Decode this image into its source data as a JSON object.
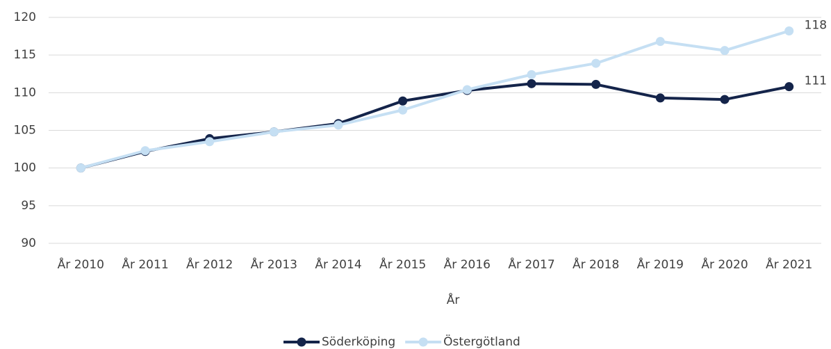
{
  "chart_data": {
    "type": "line",
    "categories": [
      "År 2010",
      "År 2011",
      "År 2012",
      "År 2013",
      "År 2014",
      "År 2015",
      "År 2016",
      "År 2017",
      "År 2018",
      "År 2019",
      "År 2020",
      "År 2021"
    ],
    "x_label": "År",
    "series": [
      {
        "name": "Söderköping",
        "color": "#14244a",
        "values": [
          100,
          102.2,
          103.9,
          104.8,
          105.9,
          108.9,
          110.3,
          111.2,
          111.1,
          109.3,
          109.1,
          110.8
        ],
        "value_labels": [
          null,
          null,
          null,
          null,
          null,
          null,
          null,
          null,
          null,
          null,
          null,
          "111"
        ]
      },
      {
        "name": "Östergötland",
        "color": "#c5dff3",
        "values": [
          100,
          102.3,
          103.5,
          104.8,
          105.7,
          107.7,
          110.4,
          112.4,
          113.9,
          116.8,
          115.6,
          118.2
        ],
        "value_labels": [
          null,
          null,
          null,
          null,
          null,
          null,
          null,
          null,
          null,
          null,
          null,
          "118"
        ]
      }
    ],
    "ylim": [
      90,
      120
    ],
    "yticks": [
      90,
      95,
      100,
      105,
      110,
      115,
      120
    ],
    "grid": true,
    "legend": "bottom"
  }
}
